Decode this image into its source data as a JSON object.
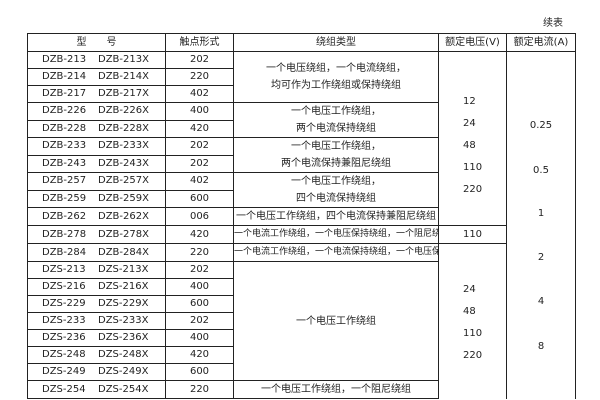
{
  "continued_label": "续表",
  "headers": {
    "model": "型　　号",
    "contact": "触点形式",
    "winding": "绕组类型",
    "voltage": "额定电压(V)",
    "current": "额定电流(A)"
  },
  "rows": [
    {
      "m1": "DZB-213",
      "m2": "DZB-213X",
      "contact": "202"
    },
    {
      "m1": "DZB-214",
      "m2": "DZB-214X",
      "contact": "220"
    },
    {
      "m1": "DZB-217",
      "m2": "DZB-217X",
      "contact": "402"
    },
    {
      "m1": "DZB-226",
      "m2": "DZB-226X",
      "contact": "400"
    },
    {
      "m1": "DZB-228",
      "m2": "DZB-228X",
      "contact": "420"
    },
    {
      "m1": "DZB-233",
      "m2": "DZB-233X",
      "contact": "202"
    },
    {
      "m1": "DZB-243",
      "m2": "DZB-243X",
      "contact": "202"
    },
    {
      "m1": "DZB-257",
      "m2": "DZB-257X",
      "contact": "402"
    },
    {
      "m1": "DZB-259",
      "m2": "DZB-259X",
      "contact": "600"
    },
    {
      "m1": "DZB-262",
      "m2": "DZB-262X",
      "contact": "006"
    },
    {
      "m1": "DZB-278",
      "m2": "DZB-278X",
      "contact": "420"
    },
    {
      "m1": "DZB-284",
      "m2": "DZB-284X",
      "contact": "220"
    },
    {
      "m1": "DZS-213",
      "m2": "DZS-213X",
      "contact": "202"
    },
    {
      "m1": "DZS-216",
      "m2": "DZS-216X",
      "contact": "400"
    },
    {
      "m1": "DZS-229",
      "m2": "DZS-229X",
      "contact": "600"
    },
    {
      "m1": "DZS-233",
      "m2": "DZS-233X",
      "contact": "202"
    },
    {
      "m1": "DZS-236",
      "m2": "DZS-236X",
      "contact": "400"
    },
    {
      "m1": "DZS-248",
      "m2": "DZS-248X",
      "contact": "420"
    },
    {
      "m1": "DZS-249",
      "m2": "DZS-249X",
      "contact": "600"
    },
    {
      "m1": "DZS-254",
      "m2": "DZS-254X",
      "contact": "220"
    }
  ],
  "windings": [
    [
      "一个电压绕组，一个电流绕组，",
      "均可作为工作绕组或保持绕组"
    ],
    [
      "一个电压工作绕组，",
      "两个电流保持绕组"
    ],
    [
      "一个电压工作绕组，",
      "两个电流保持兼阻尼绕组"
    ],
    [
      "一个电压工作绕组，",
      "四个电流保持绕组"
    ],
    [
      "一个电压工作绕组，四个电流保持兼阻尼绕组"
    ],
    [
      "一个电流工作绕组，一个电压保持绕组，一个阻尼绕组"
    ],
    [
      "一个电流工作绕组，一个电流保持绕组，一个电压保持绕组"
    ],
    [
      "一个电压工作绕组"
    ],
    [
      "一个电压工作绕组，一个阻尼绕组"
    ]
  ],
  "voltages": {
    "group1": [
      "12",
      "24",
      "48",
      "110",
      "220"
    ],
    "group2": "110",
    "group3": [
      "24",
      "48",
      "110",
      "220"
    ]
  },
  "currents": [
    "0.25",
    "0.5",
    "1",
    "2",
    "4",
    "8"
  ]
}
